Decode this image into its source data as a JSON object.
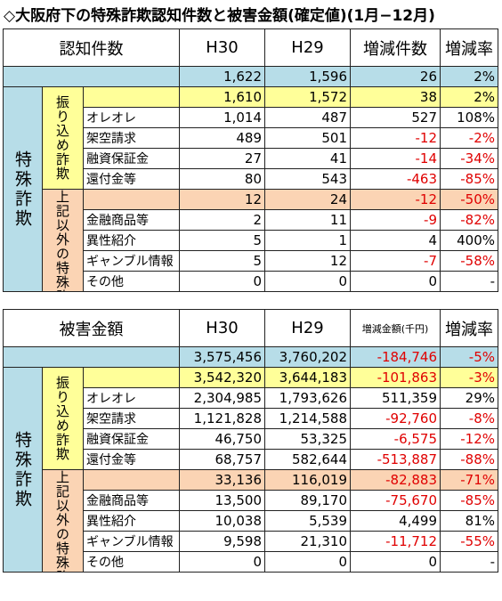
{
  "title": "◇大阪府下の特殊詐欺認知件数と被害金額(確定値)(1月−12月)",
  "tables": [
    {
      "header": [
        "認知件数",
        "H30",
        "H29",
        "増減件数",
        "増減率"
      ],
      "side_label": "特殊詐欺",
      "total": [
        "1,622",
        "1,596",
        "26",
        "2%"
      ],
      "groups": [
        {
          "label": "振り込め詐欺",
          "values": [
            "1,610",
            "1,572",
            "38",
            "2%"
          ],
          "items": [
            {
              "label": "オレオレ",
              "values": [
                "1,014",
                "487",
                "527",
                "108%"
              ]
            },
            {
              "label": "架空請求",
              "values": [
                "489",
                "501",
                "-12",
                "-2%"
              ]
            },
            {
              "label": "融資保証金",
              "values": [
                "27",
                "41",
                "-14",
                "-34%"
              ]
            },
            {
              "label": "還付金等",
              "values": [
                "80",
                "543",
                "-463",
                "-85%"
              ]
            }
          ]
        },
        {
          "label": "上記以外の特殊詐欺",
          "values": [
            "12",
            "24",
            "-12",
            "-50%"
          ],
          "items": [
            {
              "label": "金融商品等",
              "values": [
                "2",
                "11",
                "-9",
                "-82%"
              ]
            },
            {
              "label": "異性紹介",
              "values": [
                "5",
                "1",
                "4",
                "400%"
              ]
            },
            {
              "label": "ギャンブル情報",
              "values": [
                "5",
                "12",
                "-7",
                "-58%"
              ]
            },
            {
              "label": "その他",
              "values": [
                "0",
                "0",
                "0",
                "-"
              ]
            }
          ]
        }
      ]
    },
    {
      "header": [
        "被害金額",
        "H30",
        "H29",
        "増減金額(千円)",
        "増減率"
      ],
      "side_label": "特殊詐欺",
      "total": [
        "3,575,456",
        "3,760,202",
        "-184,746",
        "-5%"
      ],
      "groups": [
        {
          "label": "振り込め詐欺",
          "values": [
            "3,542,320",
            "3,644,183",
            "-101,863",
            "-3%"
          ],
          "items": [
            {
              "label": "オレオレ",
              "values": [
                "2,304,985",
                "1,793,626",
                "511,359",
                "29%"
              ]
            },
            {
              "label": "架空請求",
              "values": [
                "1,121,828",
                "1,214,588",
                "-92,760",
                "-8%"
              ]
            },
            {
              "label": "融資保証金",
              "values": [
                "46,750",
                "53,325",
                "-6,575",
                "-12%"
              ]
            },
            {
              "label": "還付金等",
              "values": [
                "68,757",
                "582,644",
                "-513,887",
                "-88%"
              ]
            }
          ]
        },
        {
          "label": "上記以外の特殊詐欺",
          "values": [
            "33,136",
            "116,019",
            "-82,883",
            "-71%"
          ],
          "items": [
            {
              "label": "金融商品等",
              "values": [
                "13,500",
                "89,170",
                "-75,670",
                "-85%"
              ]
            },
            {
              "label": "異性紹介",
              "values": [
                "10,038",
                "5,539",
                "4,499",
                "81%"
              ]
            },
            {
              "label": "ギャンブル情報",
              "values": [
                "9,598",
                "21,310",
                "-11,712",
                "-55%"
              ]
            },
            {
              "label": "その他",
              "values": [
                "0",
                "0",
                "0",
                "-"
              ]
            }
          ]
        }
      ]
    }
  ]
}
